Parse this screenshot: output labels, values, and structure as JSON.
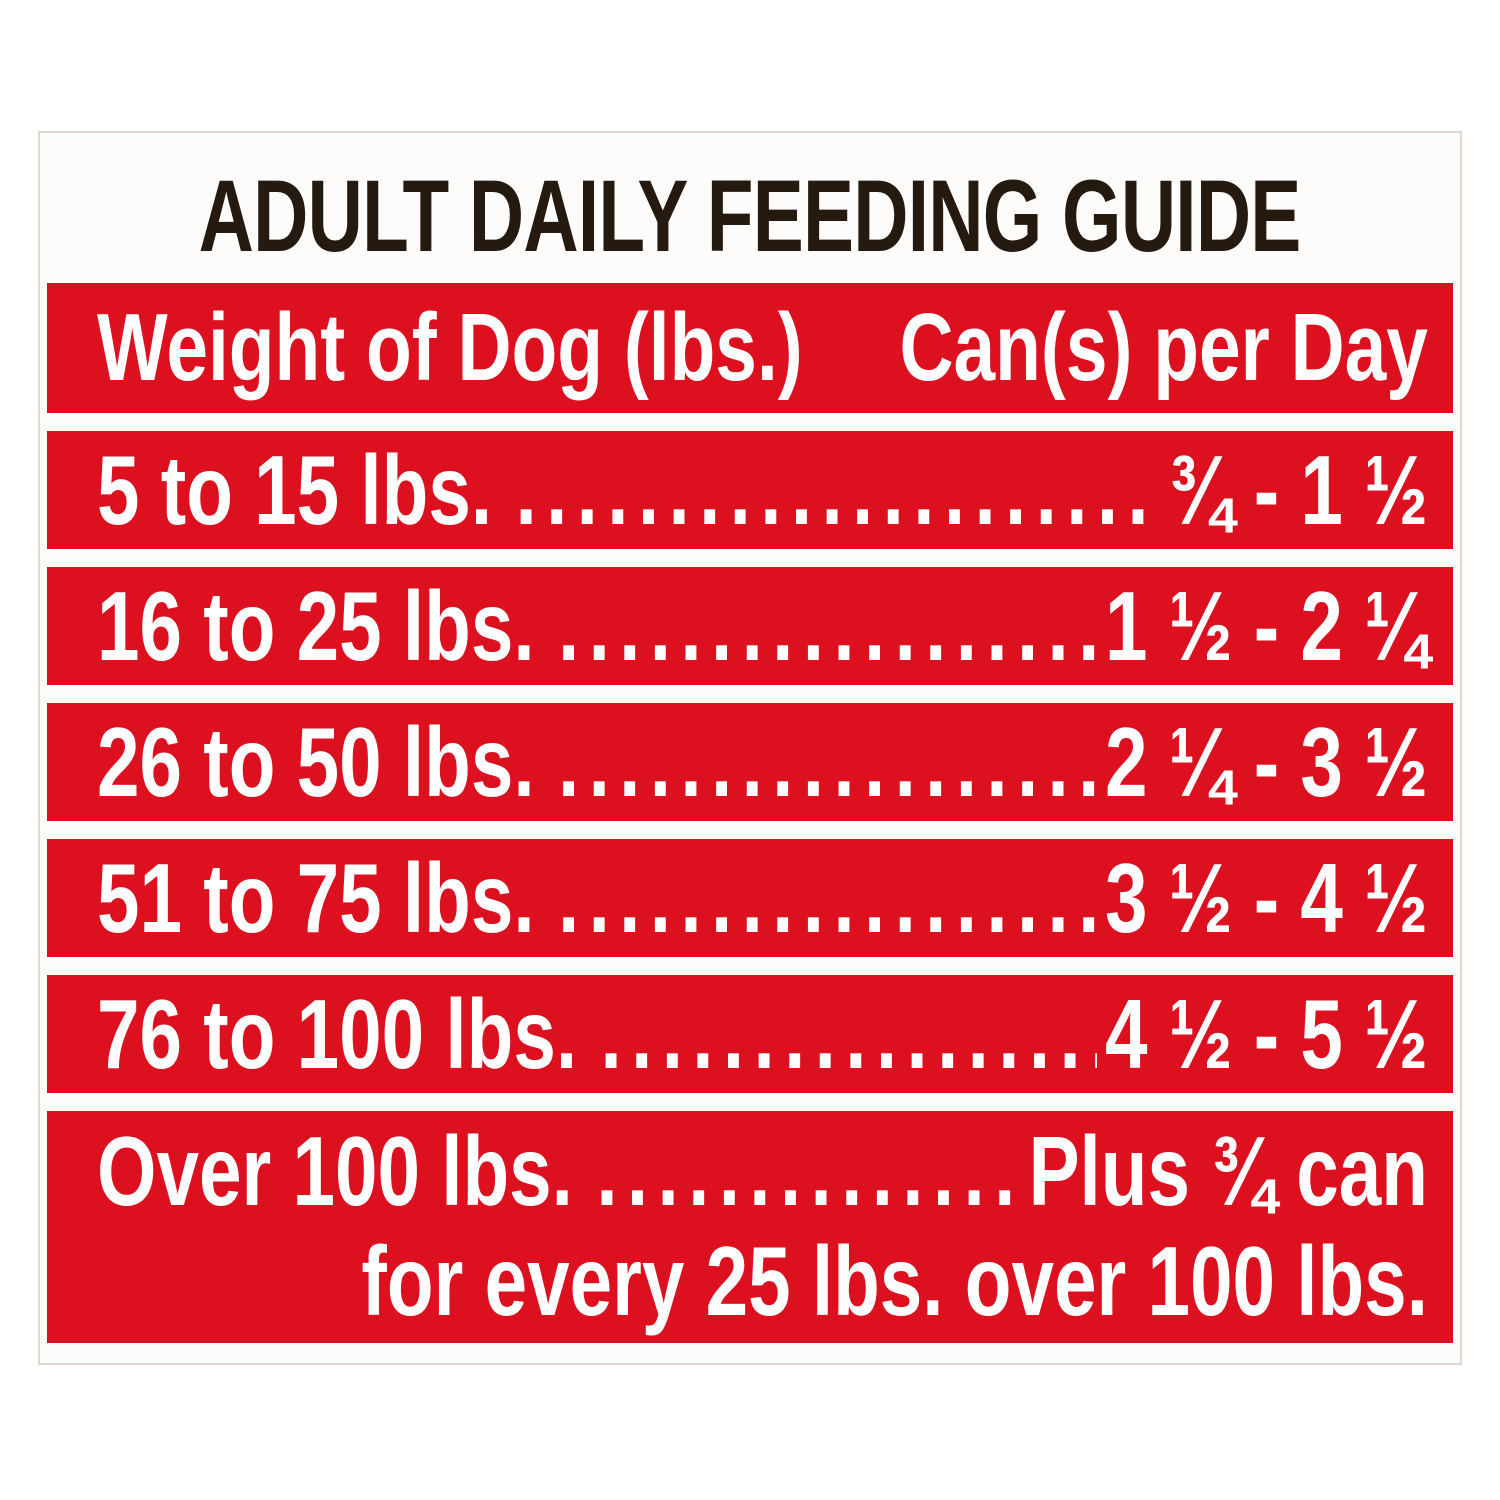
{
  "title": "ADULT DAILY FEEDING GUIDE",
  "table": {
    "header": {
      "weight_column": "Weight of Dog (lbs.)",
      "cans_column": "Can(s) per Day"
    },
    "leader_dots": "......................................................",
    "rows": [
      {
        "weight": "5 to 15 lbs.",
        "cans": "¾ - 1 ½"
      },
      {
        "weight": "16 to 25 lbs.",
        "cans": "1 ½ - 2 ¼"
      },
      {
        "weight": "26 to 50 lbs.",
        "cans": "2 ¼ - 3 ½"
      },
      {
        "weight": "51 to 75 lbs.",
        "cans": "3 ½ - 4 ½"
      },
      {
        "weight": "76 to 100 lbs.",
        "cans": "4 ½ - 5 ½"
      },
      {
        "weight": "Over 100 lbs.",
        "cans": "Plus ¾ can",
        "cans_continued": "for every 25 lbs. over 100 lbs."
      }
    ]
  },
  "colors": {
    "band_red": "#dc101f",
    "text_on_red": "#ffffff",
    "title_text": "#241a10",
    "label_background": "#fdfcfa"
  }
}
